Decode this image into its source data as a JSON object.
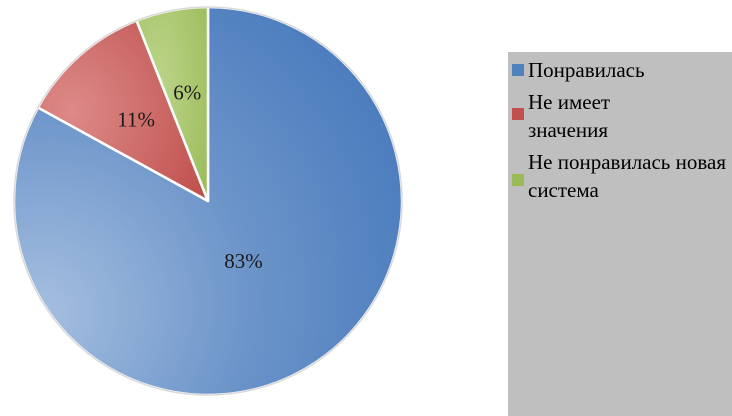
{
  "chart_data": {
    "type": "pie",
    "slices": [
      {
        "label": "Понравилась",
        "value": 83,
        "display": "83%",
        "color": "#4f81bd"
      },
      {
        "label": "Не имеет значения",
        "value": 11,
        "display": "11%",
        "color": "#c0504d"
      },
      {
        "label": "Не понравилась новая система",
        "value": 6,
        "display": "6%",
        "color": "#9bbb59"
      }
    ],
    "legend": {
      "placement": "right",
      "items": [
        "Понравилась",
        "Не имеет значения",
        "Не понравилась новая система"
      ]
    },
    "title": ""
  }
}
